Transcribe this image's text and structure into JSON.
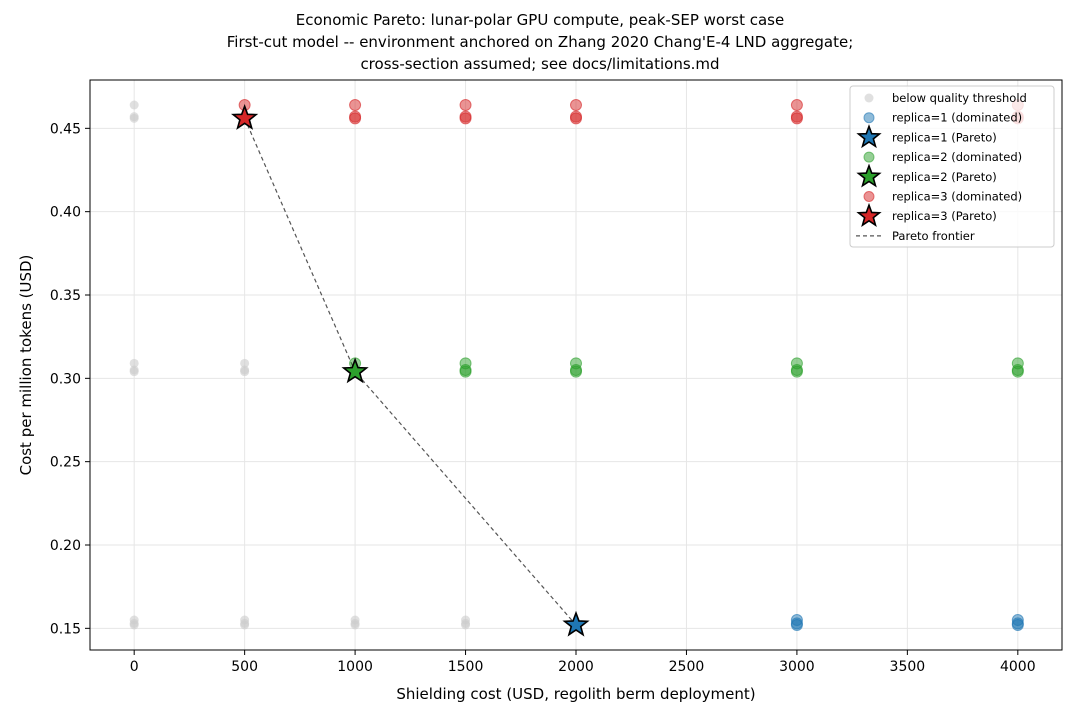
{
  "chart_data": {
    "type": "scatter",
    "title_lines": [
      "Economic Pareto: lunar-polar GPU compute, peak-SEP worst case",
      "First-cut model -- environment anchored on Zhang 2020 Chang'E-4 LND aggregate;",
      "cross-section assumed; see docs/limitations.md"
    ],
    "xlabel": "Shielding cost (USD, regolith berm deployment)",
    "ylabel": "Cost per million tokens (USD)",
    "xlim": [
      -200,
      4200
    ],
    "ylim": [
      0.137,
      0.479
    ],
    "xticks": [
      0,
      500,
      1000,
      1500,
      2000,
      2500,
      3000,
      3500,
      4000
    ],
    "xtick_labels": [
      "0",
      "500",
      "1000",
      "1500",
      "2000",
      "2500",
      "3000",
      "3500",
      "4000"
    ],
    "yticks": [
      0.15,
      0.2,
      0.25,
      0.3,
      0.35,
      0.4,
      0.45
    ],
    "ytick_labels": [
      "0.15",
      "0.20",
      "0.25",
      "0.30",
      "0.35",
      "0.40",
      "0.45"
    ],
    "grid": true,
    "legend_position": "top-right",
    "legend": [
      {
        "label": "below quality threshold",
        "marker": "circle",
        "color": "#cccccc"
      },
      {
        "label": "replica=1 (dominated)",
        "marker": "circle",
        "color": "#1f77b4"
      },
      {
        "label": "replica=1 (Pareto)",
        "marker": "star",
        "color": "#1f77b4"
      },
      {
        "label": "replica=2 (dominated)",
        "marker": "circle",
        "color": "#2ca02c"
      },
      {
        "label": "replica=2 (Pareto)",
        "marker": "star",
        "color": "#2ca02c"
      },
      {
        "label": "replica=3 (dominated)",
        "marker": "circle",
        "color": "#d62728"
      },
      {
        "label": "replica=3 (Pareto)",
        "marker": "star",
        "color": "#d62728"
      },
      {
        "label": "Pareto frontier",
        "marker": "dashed-line",
        "color": "#555555"
      }
    ],
    "series": [
      {
        "name": "below quality threshold",
        "color": "#cccccc",
        "points": [
          [
            0,
            0.464
          ],
          [
            0,
            0.457
          ],
          [
            0,
            0.456
          ],
          [
            0,
            0.309
          ],
          [
            0,
            0.305
          ],
          [
            0,
            0.304
          ],
          [
            0,
            0.155
          ],
          [
            0,
            0.153
          ],
          [
            0,
            0.152
          ],
          [
            500,
            0.309
          ],
          [
            500,
            0.305
          ],
          [
            500,
            0.304
          ],
          [
            500,
            0.155
          ],
          [
            500,
            0.153
          ],
          [
            500,
            0.152
          ],
          [
            1000,
            0.155
          ],
          [
            1000,
            0.153
          ],
          [
            1000,
            0.152
          ],
          [
            1500,
            0.155
          ],
          [
            1500,
            0.153
          ],
          [
            1500,
            0.152
          ]
        ]
      },
      {
        "name": "replica=1 (dominated)",
        "color": "#1f77b4",
        "points": [
          [
            3000,
            0.155
          ],
          [
            3000,
            0.153
          ],
          [
            3000,
            0.152
          ],
          [
            4000,
            0.155
          ],
          [
            4000,
            0.153
          ],
          [
            4000,
            0.152
          ]
        ]
      },
      {
        "name": "replica=1 (Pareto)",
        "color": "#1f77b4",
        "points": [
          [
            2000,
            0.152
          ]
        ]
      },
      {
        "name": "replica=2 (dominated)",
        "color": "#2ca02c",
        "points": [
          [
            1000,
            0.309
          ],
          [
            1500,
            0.309
          ],
          [
            1500,
            0.305
          ],
          [
            1500,
            0.304
          ],
          [
            2000,
            0.309
          ],
          [
            2000,
            0.305
          ],
          [
            2000,
            0.304
          ],
          [
            3000,
            0.309
          ],
          [
            3000,
            0.305
          ],
          [
            3000,
            0.304
          ],
          [
            4000,
            0.309
          ],
          [
            4000,
            0.305
          ],
          [
            4000,
            0.304
          ]
        ]
      },
      {
        "name": "replica=2 (Pareto)",
        "color": "#2ca02c",
        "points": [
          [
            1000,
            0.304
          ]
        ]
      },
      {
        "name": "replica=3 (dominated)",
        "color": "#d62728",
        "points": [
          [
            500,
            0.464
          ],
          [
            1000,
            0.464
          ],
          [
            1000,
            0.457
          ],
          [
            1000,
            0.456
          ],
          [
            1500,
            0.464
          ],
          [
            1500,
            0.457
          ],
          [
            1500,
            0.456
          ],
          [
            2000,
            0.464
          ],
          [
            2000,
            0.457
          ],
          [
            2000,
            0.456
          ],
          [
            3000,
            0.464
          ],
          [
            3000,
            0.457
          ],
          [
            3000,
            0.456
          ],
          [
            4000,
            0.464
          ],
          [
            4000,
            0.457
          ],
          [
            4000,
            0.456
          ]
        ]
      },
      {
        "name": "replica=3 (Pareto)",
        "color": "#d62728",
        "points": [
          [
            500,
            0.456
          ]
        ]
      }
    ],
    "pareto_frontier": [
      [
        500,
        0.456
      ],
      [
        1000,
        0.304
      ],
      [
        2000,
        0.152
      ]
    ]
  }
}
